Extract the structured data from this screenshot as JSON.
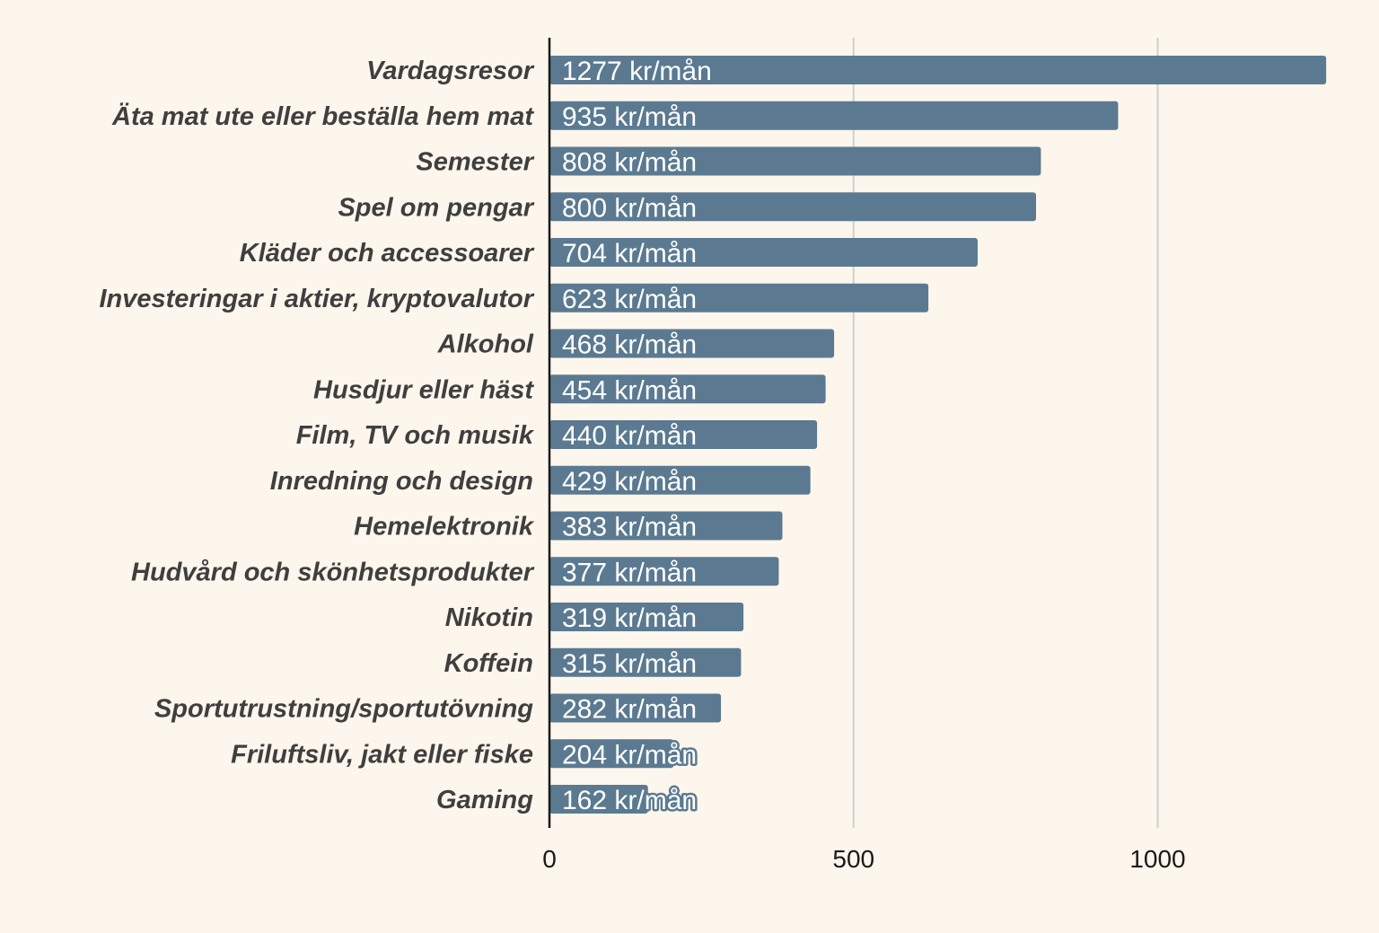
{
  "chart_data": {
    "type": "bar",
    "orientation": "horizontal",
    "categories": [
      "Vardagsresor",
      "Äta mat ute eller beställa hem mat",
      "Semester",
      "Spel om pengar",
      "Kläder och accessoarer",
      "Investeringar i aktier, kryptovalutor",
      "Alkohol",
      "Husdjur eller häst",
      "Film, TV och musik",
      "Inredning och design",
      "Hemelektronik",
      "Hudvård och skönhetsprodukter",
      "Nikotin",
      "Koffein",
      "Sportutrustning/sportutövning",
      "Friluftsliv, jakt eller fiske",
      "Gaming"
    ],
    "values": [
      1277,
      935,
      808,
      800,
      704,
      623,
      468,
      454,
      440,
      429,
      383,
      377,
      319,
      315,
      282,
      204,
      162
    ],
    "value_labels": [
      "1277 kr/mån",
      "935 kr/mån",
      "808 kr/mån",
      "800 kr/mån",
      "704 kr/mån",
      "623 kr/mån",
      "468 kr/mån",
      "454 kr/mån",
      "440 kr/mån",
      "429 kr/mån",
      "383 kr/mån",
      "377 kr/mån",
      "319 kr/mån",
      "315 kr/mån",
      "282 kr/mån",
      "204 kr/mån",
      "162 kr/mån"
    ],
    "xticks": [
      0,
      500,
      1000
    ],
    "xtick_labels": [
      "0",
      "500",
      "1000"
    ],
    "xlim": [
      0,
      1300
    ],
    "grid": "vertical",
    "title": "",
    "xlabel": "",
    "ylabel": "",
    "colors": {
      "bar": "#5b7a91",
      "background": "#fdf6ec",
      "grid": "#cfcfcf",
      "axis": "#1a1a1a",
      "category_text": "#3f3f3f",
      "value_text": "#ffffff"
    }
  }
}
